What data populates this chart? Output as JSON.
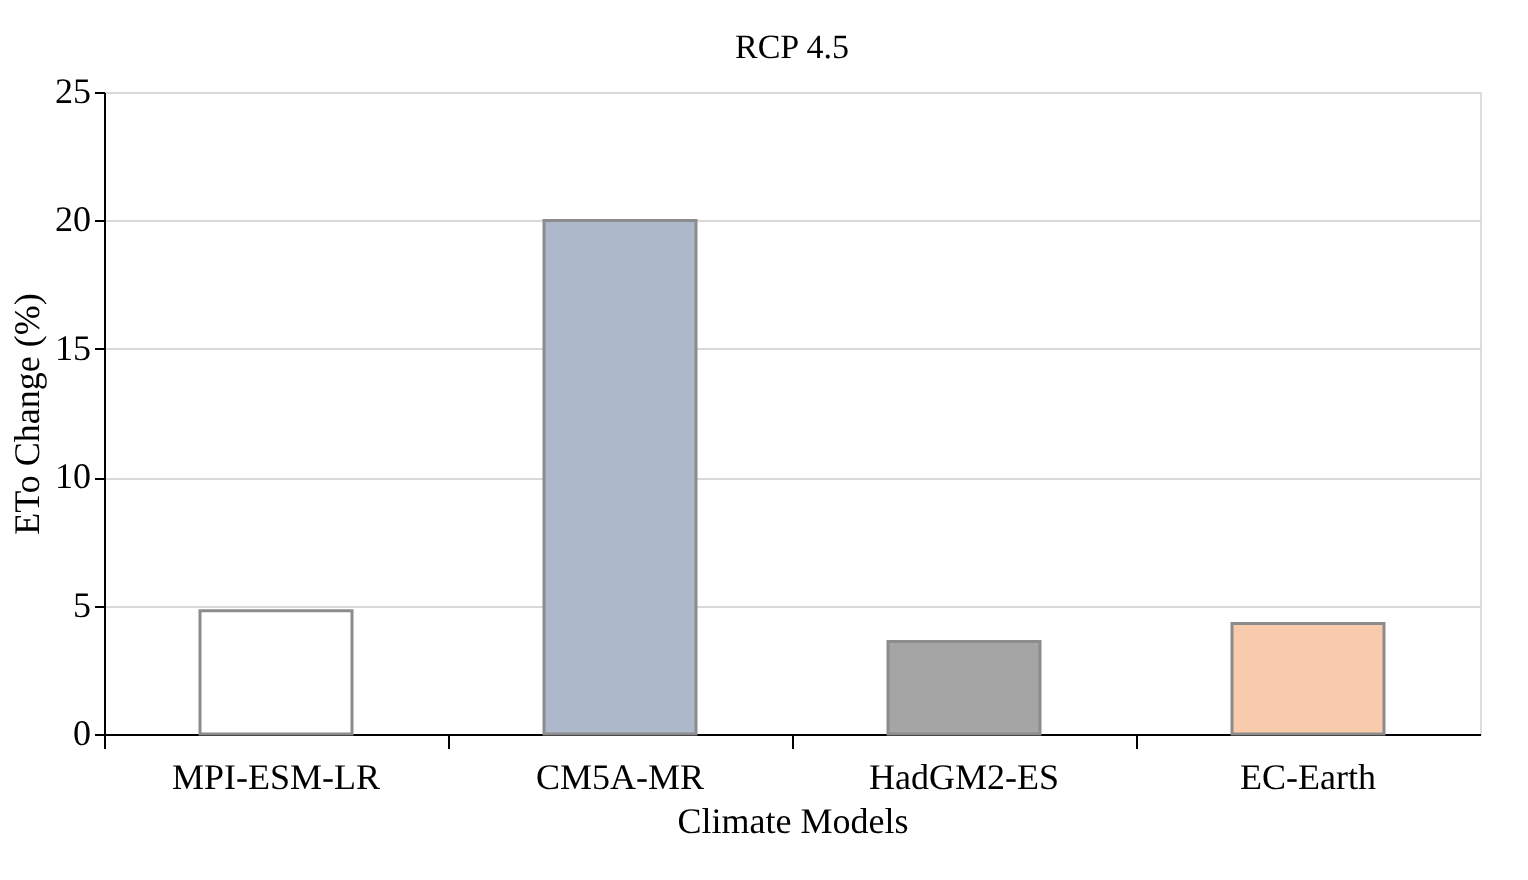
{
  "chart_data": {
    "type": "bar",
    "title": "RCP 4.5",
    "xlabel": "Climate Models",
    "ylabel": "ETo Change (%)",
    "categories": [
      "MPI-ESM-LR",
      "CM5A-MR",
      "HadGM2-ES",
      "EC-Earth"
    ],
    "values": [
      4.8,
      20,
      3.6,
      4.3
    ],
    "colors": [
      "#ffffff",
      "#adb9ca",
      "#a5a5a5",
      "#f8cbad"
    ],
    "ylim": [
      0,
      25
    ],
    "yticks": [
      0,
      5,
      10,
      15,
      20,
      25
    ],
    "grid": "y"
  }
}
